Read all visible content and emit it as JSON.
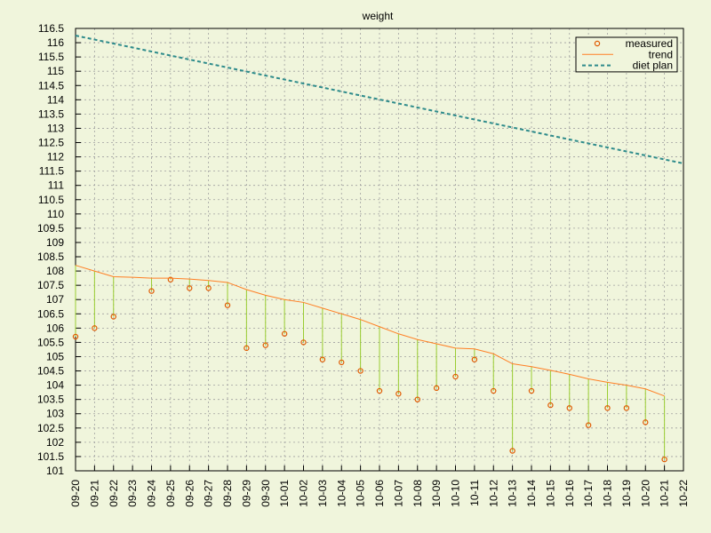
{
  "chart_data": {
    "type": "line",
    "title": "weight",
    "categories": [
      "09-20",
      "09-21",
      "09-22",
      "09-23",
      "09-24",
      "09-25",
      "09-26",
      "09-27",
      "09-28",
      "09-29",
      "09-30",
      "10-01",
      "10-02",
      "10-03",
      "10-04",
      "10-05",
      "10-06",
      "10-07",
      "10-08",
      "10-09",
      "10-10",
      "10-11",
      "10-12",
      "10-13",
      "10-14",
      "10-15",
      "10-16",
      "10-17",
      "10-18",
      "10-19",
      "10-20",
      "10-21",
      "10-22"
    ],
    "series": [
      {
        "name": "measured",
        "color": "#e05a00",
        "style": "points",
        "impulse_to": 1,
        "impulse_color": "#9acd32",
        "values": [
          105.7,
          106.0,
          106.4,
          null,
          107.3,
          107.7,
          107.4,
          107.4,
          106.8,
          105.3,
          105.4,
          105.8,
          105.5,
          104.9,
          104.8,
          104.5,
          103.8,
          103.7,
          103.5,
          103.9,
          104.3,
          104.9,
          103.8,
          101.7,
          103.8,
          103.3,
          103.2,
          102.6,
          103.2,
          103.2,
          102.7,
          101.4,
          null
        ]
      },
      {
        "name": "trend",
        "color": "#ff7f24",
        "style": "line",
        "values": [
          108.2,
          108.0,
          107.8,
          107.78,
          107.75,
          107.75,
          107.72,
          107.67,
          107.6,
          107.35,
          107.15,
          107.0,
          106.9,
          106.7,
          106.5,
          106.3,
          106.05,
          105.8,
          105.6,
          105.45,
          105.3,
          105.27,
          105.1,
          104.75,
          104.65,
          104.52,
          104.38,
          104.22,
          104.1,
          104.0,
          103.87,
          103.62,
          null
        ]
      },
      {
        "name": "diet plan",
        "color": "#2e8b8b",
        "style": "dashed",
        "values": [
          116.25,
          116.11,
          115.97,
          115.83,
          115.69,
          115.55,
          115.41,
          115.27,
          115.13,
          114.99,
          114.85,
          114.71,
          114.57,
          114.43,
          114.29,
          114.15,
          114.01,
          113.87,
          113.73,
          113.59,
          113.45,
          113.31,
          113.17,
          113.03,
          112.89,
          112.75,
          112.61,
          112.47,
          112.33,
          112.19,
          112.05,
          111.91,
          111.77
        ]
      }
    ],
    "ylim": [
      101,
      116.5
    ],
    "yticks": [
      101,
      101.5,
      102,
      102.5,
      103,
      103.5,
      104,
      104.5,
      105,
      105.5,
      106,
      106.5,
      107,
      107.5,
      108,
      108.5,
      109,
      109.5,
      110,
      110.5,
      111,
      111.5,
      112,
      112.5,
      113,
      113.5,
      114,
      114.5,
      115,
      115.5,
      116,
      116.5
    ],
    "grid": true,
    "legend": "top right",
    "background": "#f0f5dc"
  }
}
